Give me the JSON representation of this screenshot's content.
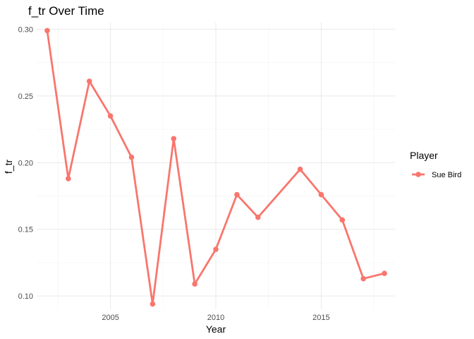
{
  "chart_data": {
    "type": "line",
    "title": "f_tr Over Time",
    "xlabel": "Year",
    "ylabel": "f_tr",
    "xlim": [
      2001.5,
      2018.5
    ],
    "ylim": [
      0.09,
      0.305
    ],
    "x_ticks": [
      2005,
      2010,
      2015
    ],
    "y_ticks": [
      0.1,
      0.15,
      0.2,
      0.25,
      0.3
    ],
    "y_tick_labels": [
      "0.10",
      "0.15",
      "0.20",
      "0.25",
      "0.30"
    ],
    "grid": true,
    "legend_title": "Player",
    "legend_position": "right",
    "series": [
      {
        "name": "Sue Bird",
        "color": "#F8766D",
        "x": [
          2002,
          2003,
          2004,
          2005,
          2006,
          2007,
          2008,
          2009,
          2010,
          2011,
          2012,
          2014,
          2015,
          2016,
          2017,
          2018
        ],
        "y": [
          0.299,
          0.188,
          0.261,
          0.235,
          0.204,
          0.094,
          0.218,
          0.109,
          0.135,
          0.176,
          0.159,
          0.195,
          0.176,
          0.157,
          0.113,
          0.117
        ]
      }
    ]
  }
}
